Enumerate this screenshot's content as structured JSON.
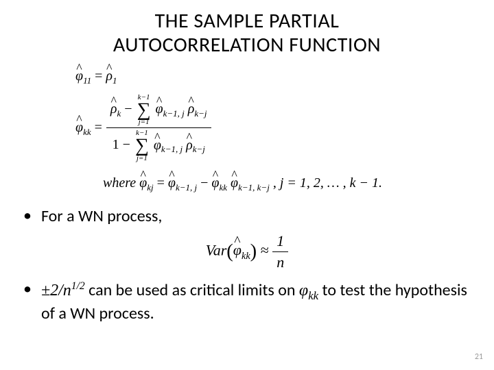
{
  "title_line1": "THE SAMPLE PARTIAL",
  "title_line2": "AUTOCORRELATION FUNCTION",
  "math": {
    "phi11": "φ",
    "sub11": "11",
    "rho1": "ρ",
    "sub1": "1",
    "phikk_left": "φ",
    "subkk": "kk",
    "rhok": "ρ",
    "subk": "k",
    "sum_top": "k−1",
    "sum_bot": "j=1",
    "phi_km1j": "φ",
    "sub_km1j": "k−1, j",
    "rho_kmj": "ρ",
    "sub_kmj": "k−j",
    "one": "1",
    "where": "where ",
    "phi_kj": "φ",
    "sub_kj": "kj",
    "phi_km1_kmj": "φ",
    "sub_km1_kmj": "k−1, k−j",
    "jlist": " , j = 1, 2, … , k − 1."
  },
  "bullet1": "For a WN process,",
  "var_line": {
    "var": "Var",
    "phi": "φ",
    "subkk": "kk",
    "approx": "≈",
    "one": "1",
    "n": "n"
  },
  "bullet2": {
    "pm": "±2/n",
    "half": "1/2",
    "mid": " can be used as critical limits on ",
    "phi": "φ",
    "subkk": "kk",
    "tail": " to test the hypothesis of a WN process."
  },
  "page_number": "21"
}
